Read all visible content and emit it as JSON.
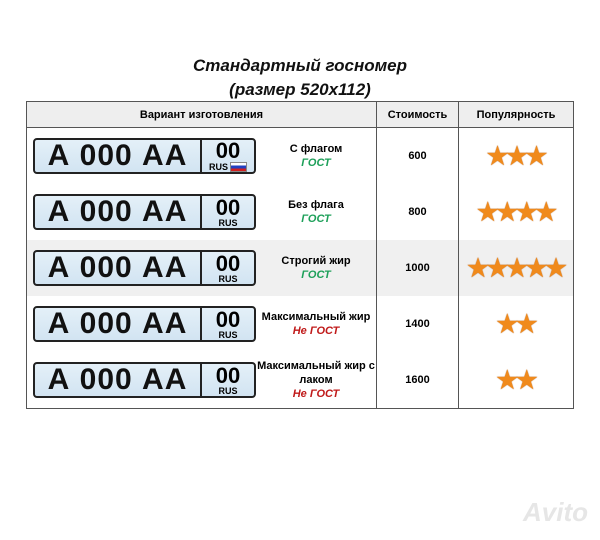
{
  "title_line1": "Стандартный госномер",
  "title_line2": "(размер 520x112)",
  "headers": [
    "Вариант изготовления",
    "Стоимость",
    "Популярность"
  ],
  "plate": {
    "number": "А 000 АА",
    "region": "00",
    "country": "RUS"
  },
  "rows": [
    {
      "name": "С флагом",
      "status": "ГОСТ",
      "gost": true,
      "price": "600",
      "stars": 3,
      "flag": true
    },
    {
      "name": "Без флага",
      "status": "ГОСТ",
      "gost": true,
      "price": "800",
      "stars": 4,
      "flag": false
    },
    {
      "name": "Строгий жир",
      "status": "ГОСТ",
      "gost": true,
      "price": "1000",
      "stars": 5,
      "flag": false
    },
    {
      "name": "Максимальный жир",
      "status": "Не ГОСТ",
      "gost": false,
      "price": "1400",
      "stars": 2,
      "flag": false
    },
    {
      "name": "Максимальный жир с лаком",
      "status": "Не ГОСТ",
      "gost": false,
      "price": "1600",
      "stars": 2,
      "flag": false
    }
  ],
  "colors": {
    "gost": "#1ea05a",
    "not_gost": "#c01a1a",
    "star": "#f08a1c"
  },
  "watermark": "Avito"
}
